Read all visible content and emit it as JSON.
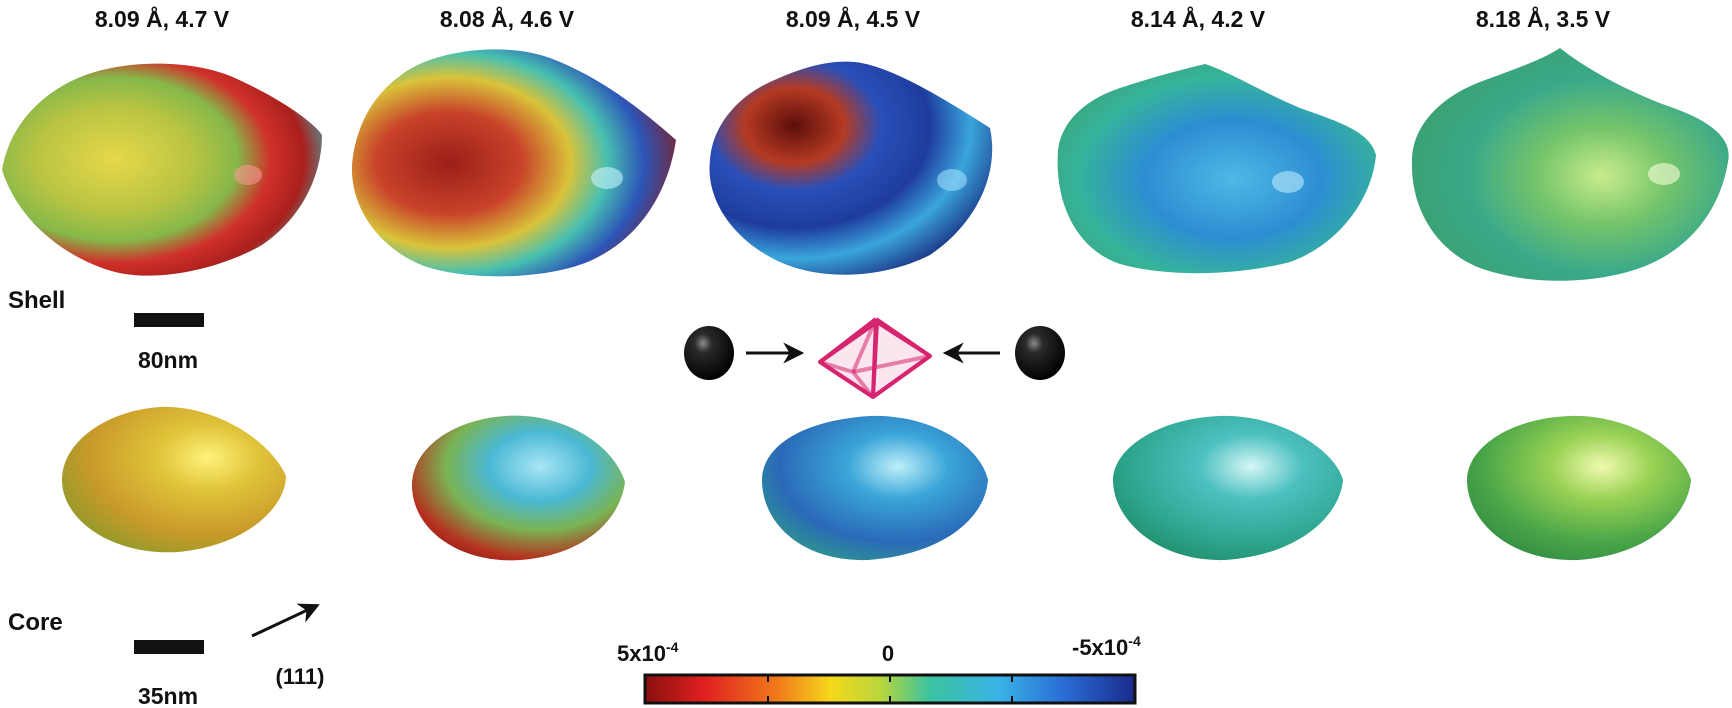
{
  "columns": [
    {
      "label": "8.09 Å, 4.7 V"
    },
    {
      "label": "8.08 Å, 4.6 V"
    },
    {
      "label": "8.09 Å, 4.5 V"
    },
    {
      "label": "8.14 Å, 4.2 V"
    },
    {
      "label": "8.18 Å, 3.5 V"
    }
  ],
  "rows": {
    "shell": "Shell",
    "core": "Core"
  },
  "scale_bars": {
    "shell": "80nm",
    "core": "35nm"
  },
  "direction_label": "(111)",
  "colorbar": {
    "left_base": "5x10",
    "left_exp": "-4",
    "center": "0",
    "right_base": "-5x10",
    "right_exp": "-4",
    "colors": [
      "#8a0f0f",
      "#e02020",
      "#f07a1a",
      "#f5d81a",
      "#b8d63a",
      "#3cc3a0",
      "#39b4e6",
      "#2a6fd6",
      "#1a2a8c"
    ]
  },
  "palette": {
    "octahedron": "#d6246e",
    "sphere": "#0a0a0a"
  }
}
